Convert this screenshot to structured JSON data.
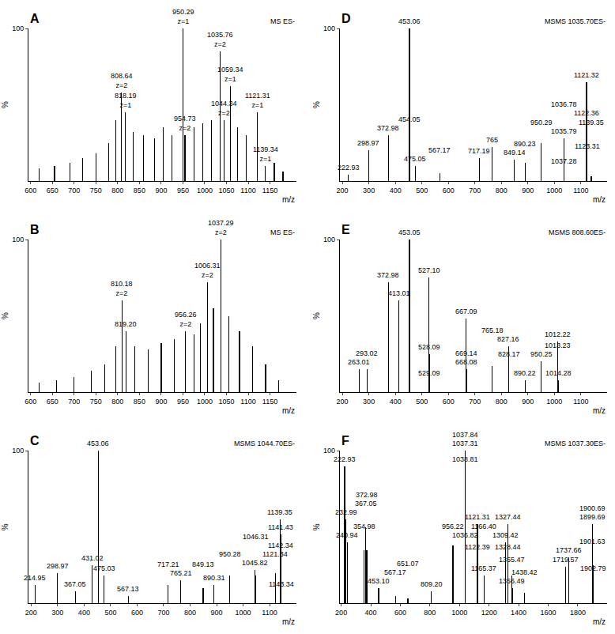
{
  "chart_data": [
    {
      "type": "bar",
      "panel": "A",
      "title": "MS ES-",
      "xlabel": "m/z",
      "ylabel": "%",
      "color": "#000000",
      "grid": false,
      "x": [
        620,
        655,
        690,
        720,
        750,
        780,
        795,
        808.64,
        818.19,
        835,
        860,
        885,
        905,
        925,
        950.29,
        954.73,
        975,
        995,
        1015,
        1035.76,
        1044.34,
        1059.34,
        1075,
        1095,
        1121.31,
        1139.34,
        1160,
        1180
      ],
      "values": [
        8,
        10,
        12,
        15,
        18,
        25,
        40,
        58,
        45,
        32,
        30,
        28,
        35,
        30,
        100,
        30,
        35,
        38,
        40,
        85,
        40,
        62,
        35,
        30,
        45,
        10,
        12,
        6
      ],
      "labels": [
        null,
        null,
        null,
        null,
        null,
        null,
        null,
        "808.64",
        "818.19",
        null,
        null,
        null,
        null,
        null,
        "950.29",
        "954.73",
        null,
        null,
        null,
        "1035.76",
        "1044.34",
        "1059.34",
        null,
        null,
        "1121.31",
        "1139.34",
        null,
        null
      ],
      "charges": [
        null,
        null,
        null,
        null,
        null,
        null,
        null,
        "z=2",
        "z=1",
        null,
        null,
        null,
        null,
        null,
        "z=1",
        "z=2",
        null,
        null,
        null,
        "z=2",
        "z=2",
        "z=1",
        null,
        null,
        "z=1",
        "z=1",
        null,
        null
      ],
      "xlim": [
        595,
        1210
      ],
      "xticks": [
        600,
        650,
        700,
        750,
        800,
        850,
        900,
        950,
        1000,
        1050,
        1100,
        1150
      ],
      "ylim": [
        0,
        100
      ],
      "yticks": [
        100
      ]
    },
    {
      "type": "bar",
      "panel": "D",
      "title": "MSMS 1035.70ES-",
      "xlabel": "m/z",
      "ylabel": "%",
      "color": "#000000",
      "grid": false,
      "x": [
        222.93,
        298.97,
        372.98,
        453.06,
        454.05,
        475.05,
        567.17,
        717.19,
        765,
        849.14,
        890.23,
        950.29,
        1035.79,
        1036.78,
        1037.28,
        1121.32,
        1122.36,
        1123.31,
        1139.35
      ],
      "values": [
        4,
        20,
        30,
        100,
        25,
        10,
        5,
        15,
        22,
        14,
        12,
        25,
        28,
        14,
        8,
        65,
        40,
        18,
        3
      ],
      "labels": [
        "222.93",
        "298.97",
        "372.98",
        "453.06",
        "454.05",
        "475.05",
        "567.17",
        "717.19",
        "765",
        "849.14",
        "890.23",
        "950.29",
        "1035.79",
        "1036.78",
        "1037.28",
        "1121.32",
        "1122.36",
        "1123.31",
        "1139.35"
      ],
      "charges": [
        null,
        null,
        null,
        null,
        null,
        null,
        null,
        null,
        null,
        null,
        null,
        null,
        null,
        null,
        null,
        null,
        null,
        null,
        null
      ],
      "xlim": [
        190,
        1200
      ],
      "xticks": [
        200,
        300,
        400,
        500,
        600,
        700,
        800,
        900,
        1000,
        1100
      ],
      "ylim": [
        0,
        100
      ],
      "yticks": [
        100
      ]
    },
    {
      "type": "bar",
      "panel": "B",
      "title": "MS ES-",
      "xlabel": "m/z",
      "ylabel": "%",
      "color": "#000000",
      "grid": false,
      "x": [
        620,
        660,
        700,
        740,
        770,
        795,
        810.18,
        819.2,
        840,
        870,
        900,
        930,
        956.26,
        975,
        990,
        1006.31,
        1020,
        1037.29,
        1055,
        1080,
        1110,
        1140,
        1170
      ],
      "values": [
        6,
        8,
        10,
        14,
        18,
        30,
        60,
        40,
        30,
        28,
        32,
        35,
        40,
        38,
        45,
        72,
        55,
        100,
        50,
        40,
        30,
        18,
        8
      ],
      "labels": [
        null,
        null,
        null,
        null,
        null,
        null,
        "810.18",
        "819.20",
        null,
        null,
        null,
        null,
        "956.26",
        null,
        null,
        "1006.31",
        null,
        "1037.29",
        null,
        null,
        null,
        null,
        null
      ],
      "charges": [
        null,
        null,
        null,
        null,
        null,
        null,
        "z=2",
        null,
        null,
        null,
        null,
        null,
        "z=2",
        null,
        null,
        "z=2",
        null,
        "z=2",
        null,
        null,
        null,
        null,
        null
      ],
      "xlim": [
        595,
        1210
      ],
      "xticks": [
        600,
        650,
        700,
        750,
        800,
        850,
        900,
        950,
        1000,
        1050,
        1100,
        1150
      ],
      "ylim": [
        0,
        100
      ],
      "yticks": [
        100
      ]
    },
    {
      "type": "bar",
      "panel": "E",
      "title": "MSMS 808.60ES-",
      "xlabel": "m/z",
      "ylabel": "%",
      "color": "#000000",
      "grid": false,
      "x": [
        263.01,
        293.02,
        372.98,
        413.01,
        453.05,
        527.1,
        528.09,
        529.09,
        667.09,
        668.08,
        669.14,
        765.18,
        827.16,
        828.17,
        890.22,
        950.25,
        1012.22,
        1013.23,
        1014.28
      ],
      "values": [
        15,
        15,
        72,
        60,
        100,
        75,
        25,
        8,
        48,
        15,
        10,
        17,
        30,
        20,
        8,
        20,
        33,
        18,
        8
      ],
      "labels": [
        "263.01",
        "293.02",
        "372.98",
        "413.01",
        "453.05",
        "527.10",
        "528.09",
        "529.09",
        "667.09",
        "668.08",
        "669.14",
        "765.18",
        "827.16",
        "828.17",
        "890.22",
        "950.25",
        "1012.22",
        "1013.23",
        "1014.28"
      ],
      "charges": [
        null,
        null,
        null,
        null,
        null,
        null,
        null,
        null,
        null,
        null,
        null,
        null,
        null,
        null,
        null,
        null,
        null,
        null,
        null
      ],
      "xlim": [
        190,
        1200
      ],
      "xticks": [
        200,
        300,
        400,
        500,
        600,
        700,
        800,
        900,
        1000,
        1100
      ],
      "ylim": [
        0,
        100
      ],
      "yticks": [
        100
      ]
    },
    {
      "type": "bar",
      "panel": "C",
      "title": "MSMS 1044.70ES-",
      "xlabel": "m/z",
      "ylabel": "%",
      "color": "#000000",
      "grid": false,
      "x": [
        214.95,
        298.97,
        367.05,
        431.02,
        453.06,
        475.03,
        567.13,
        717.21,
        765.21,
        849.13,
        890.31,
        950.28,
        1045.82,
        1046.31,
        1121.34,
        1139.35,
        1141.43,
        1142.34,
        1143.34
      ],
      "values": [
        12,
        20,
        8,
        25,
        100,
        18,
        5,
        12,
        15,
        10,
        12,
        18,
        22,
        18,
        20,
        55,
        45,
        20,
        8
      ],
      "labels": [
        "214.95",
        "298.97",
        "367.05",
        "431.02",
        "453.06",
        "475.03",
        "567.13",
        "717.21",
        "765.21",
        "849.13",
        "890.31",
        "950.28",
        "1045.82",
        "1046.31",
        "1121.34",
        "1139.35",
        "1141.43",
        "1142.34",
        "1143.34"
      ],
      "charges": [
        null,
        null,
        null,
        null,
        null,
        null,
        null,
        null,
        null,
        null,
        null,
        null,
        null,
        null,
        null,
        null,
        null,
        null,
        null
      ],
      "xlim": [
        190,
        1200
      ],
      "xticks": [
        200,
        300,
        400,
        500,
        600,
        700,
        800,
        900,
        1000,
        1100
      ],
      "ylim": [
        0,
        100
      ],
      "yticks": [
        100
      ]
    },
    {
      "type": "bar",
      "panel": "F",
      "title": "MSMS 1037.30ES-",
      "xlabel": "m/z",
      "ylabel": "%",
      "color": "#000000",
      "grid": false,
      "x": [
        222.93,
        232.99,
        240.94,
        354.98,
        367.05,
        372.98,
        453.1,
        567.17,
        651.07,
        809.2,
        956.22,
        1036.82,
        1037.31,
        1037.84,
        1038.81,
        1121.31,
        1122.39,
        1165.37,
        1166.4,
        1309.42,
        1327.44,
        1328.44,
        1355.47,
        1356.49,
        1438.42,
        1719.57,
        1737.66,
        1899.69,
        1900.69,
        1901.63,
        1902.79
      ],
      "values": [
        90,
        55,
        40,
        35,
        50,
        35,
        10,
        5,
        3,
        8,
        38,
        40,
        100,
        100,
        90,
        52,
        32,
        18,
        14,
        40,
        52,
        32,
        18,
        10,
        7,
        24,
        30,
        52,
        48,
        25,
        18
      ],
      "labels": [
        "222.93",
        "232.99",
        "240.94",
        "354.98",
        "367.05",
        "372.98",
        "453.10",
        "567.17",
        "651.07",
        "809.20",
        "956.22",
        "1036.82",
        "1037.31",
        "1037.84",
        "1038.81",
        "1121.31",
        "1122.39",
        "1165.37",
        "1166.40",
        "1309.42",
        "1327.44",
        "1328.44",
        "1355.47",
        "1356.49",
        "1438.42",
        "1719.57",
        "1737.66",
        "1899.69",
        "1900.69",
        "1901.63",
        "1902.79"
      ],
      "charges": [
        null,
        null,
        null,
        null,
        null,
        null,
        null,
        null,
        null,
        null,
        null,
        null,
        null,
        null,
        null,
        null,
        null,
        null,
        null,
        null,
        null,
        null,
        null,
        null,
        null,
        null,
        null,
        null,
        null,
        null,
        null
      ],
      "xlim": [
        190,
        2000
      ],
      "xticks": [
        200,
        400,
        600,
        800,
        1000,
        1200,
        1400,
        1600,
        1800
      ],
      "ylim": [
        0,
        100
      ],
      "yticks": [
        100
      ]
    }
  ]
}
